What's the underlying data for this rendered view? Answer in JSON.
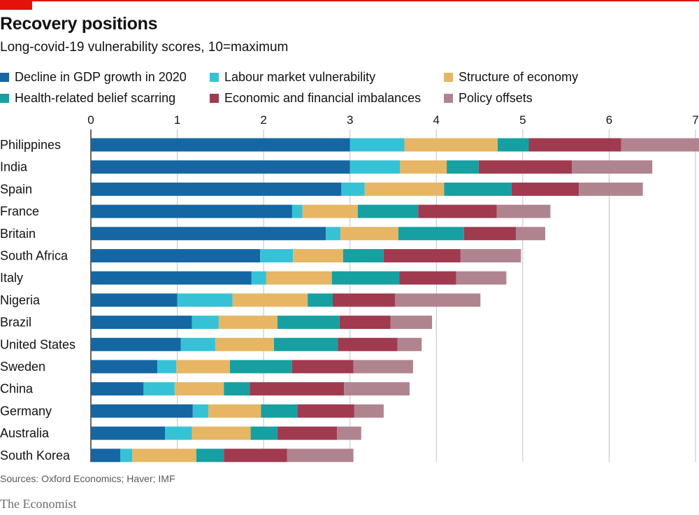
{
  "header": {
    "title": "Recovery positions",
    "subtitle": "Long-covid-19 vulnerability scores, 10=maximum"
  },
  "footer": {
    "source": "Sources: Oxford Economics; Haver; IMF",
    "brand": "The Economist"
  },
  "colors": {
    "accent": "#e3120b",
    "gdp": "#1467a3",
    "labour": "#36c2d6",
    "structure": "#e6b664",
    "health": "#17a0a1",
    "imbalances": "#a03a4f",
    "policy": "#b0848f",
    "grid": "#b8c3cc"
  },
  "chart_data": {
    "type": "bar",
    "orientation": "horizontal",
    "stacked": true,
    "title": "Recovery positions",
    "subtitle": "Long-covid-19 vulnerability scores, 10=maximum",
    "xlim": [
      0,
      7
    ],
    "x_ticks": [
      "0",
      "1",
      "2",
      "3",
      "4",
      "5",
      "6",
      "7"
    ],
    "grid": true,
    "legend_position": "top",
    "categories": [
      "Philippines",
      "India",
      "Spain",
      "France",
      "Britain",
      "South Africa",
      "Italy",
      "Nigeria",
      "Brazil",
      "United States",
      "Sweden",
      "China",
      "Germany",
      "Australia",
      "South Korea"
    ],
    "series": [
      {
        "name": "Decline in GDP growth in 2020",
        "color": "#1467a3",
        "values": [
          3.0,
          3.0,
          2.9,
          2.33,
          2.72,
          1.96,
          1.86,
          1.0,
          1.17,
          1.04,
          0.77,
          0.61,
          1.18,
          0.86,
          0.34
        ]
      },
      {
        "name": "Labour market vulnerability",
        "color": "#36c2d6",
        "values": [
          0.63,
          0.58,
          0.27,
          0.12,
          0.17,
          0.38,
          0.17,
          0.64,
          0.31,
          0.4,
          0.22,
          0.36,
          0.18,
          0.31,
          0.14
        ]
      },
      {
        "name": "Structure of economy",
        "color": "#e6b664",
        "values": [
          1.08,
          0.54,
          0.92,
          0.64,
          0.67,
          0.58,
          0.76,
          0.87,
          0.68,
          0.68,
          0.62,
          0.57,
          0.61,
          0.68,
          0.74
        ]
      },
      {
        "name": "Health-related belief scarring",
        "color": "#17a0a1",
        "values": [
          0.36,
          0.37,
          0.78,
          0.7,
          0.76,
          0.47,
          0.78,
          0.29,
          0.72,
          0.74,
          0.72,
          0.3,
          0.42,
          0.31,
          0.32
        ]
      },
      {
        "name": "Economic and financial imbalances",
        "color": "#a03a4f",
        "values": [
          1.07,
          1.08,
          0.78,
          0.91,
          0.6,
          0.89,
          0.66,
          0.72,
          0.59,
          0.69,
          0.71,
          1.09,
          0.66,
          0.69,
          0.73
        ]
      },
      {
        "name": "Policy offsets",
        "color": "#b0848f",
        "values": [
          0.91,
          0.93,
          0.74,
          0.62,
          0.34,
          0.7,
          0.58,
          0.99,
          0.48,
          0.28,
          0.69,
          0.76,
          0.34,
          0.28,
          0.77
        ]
      }
    ]
  }
}
